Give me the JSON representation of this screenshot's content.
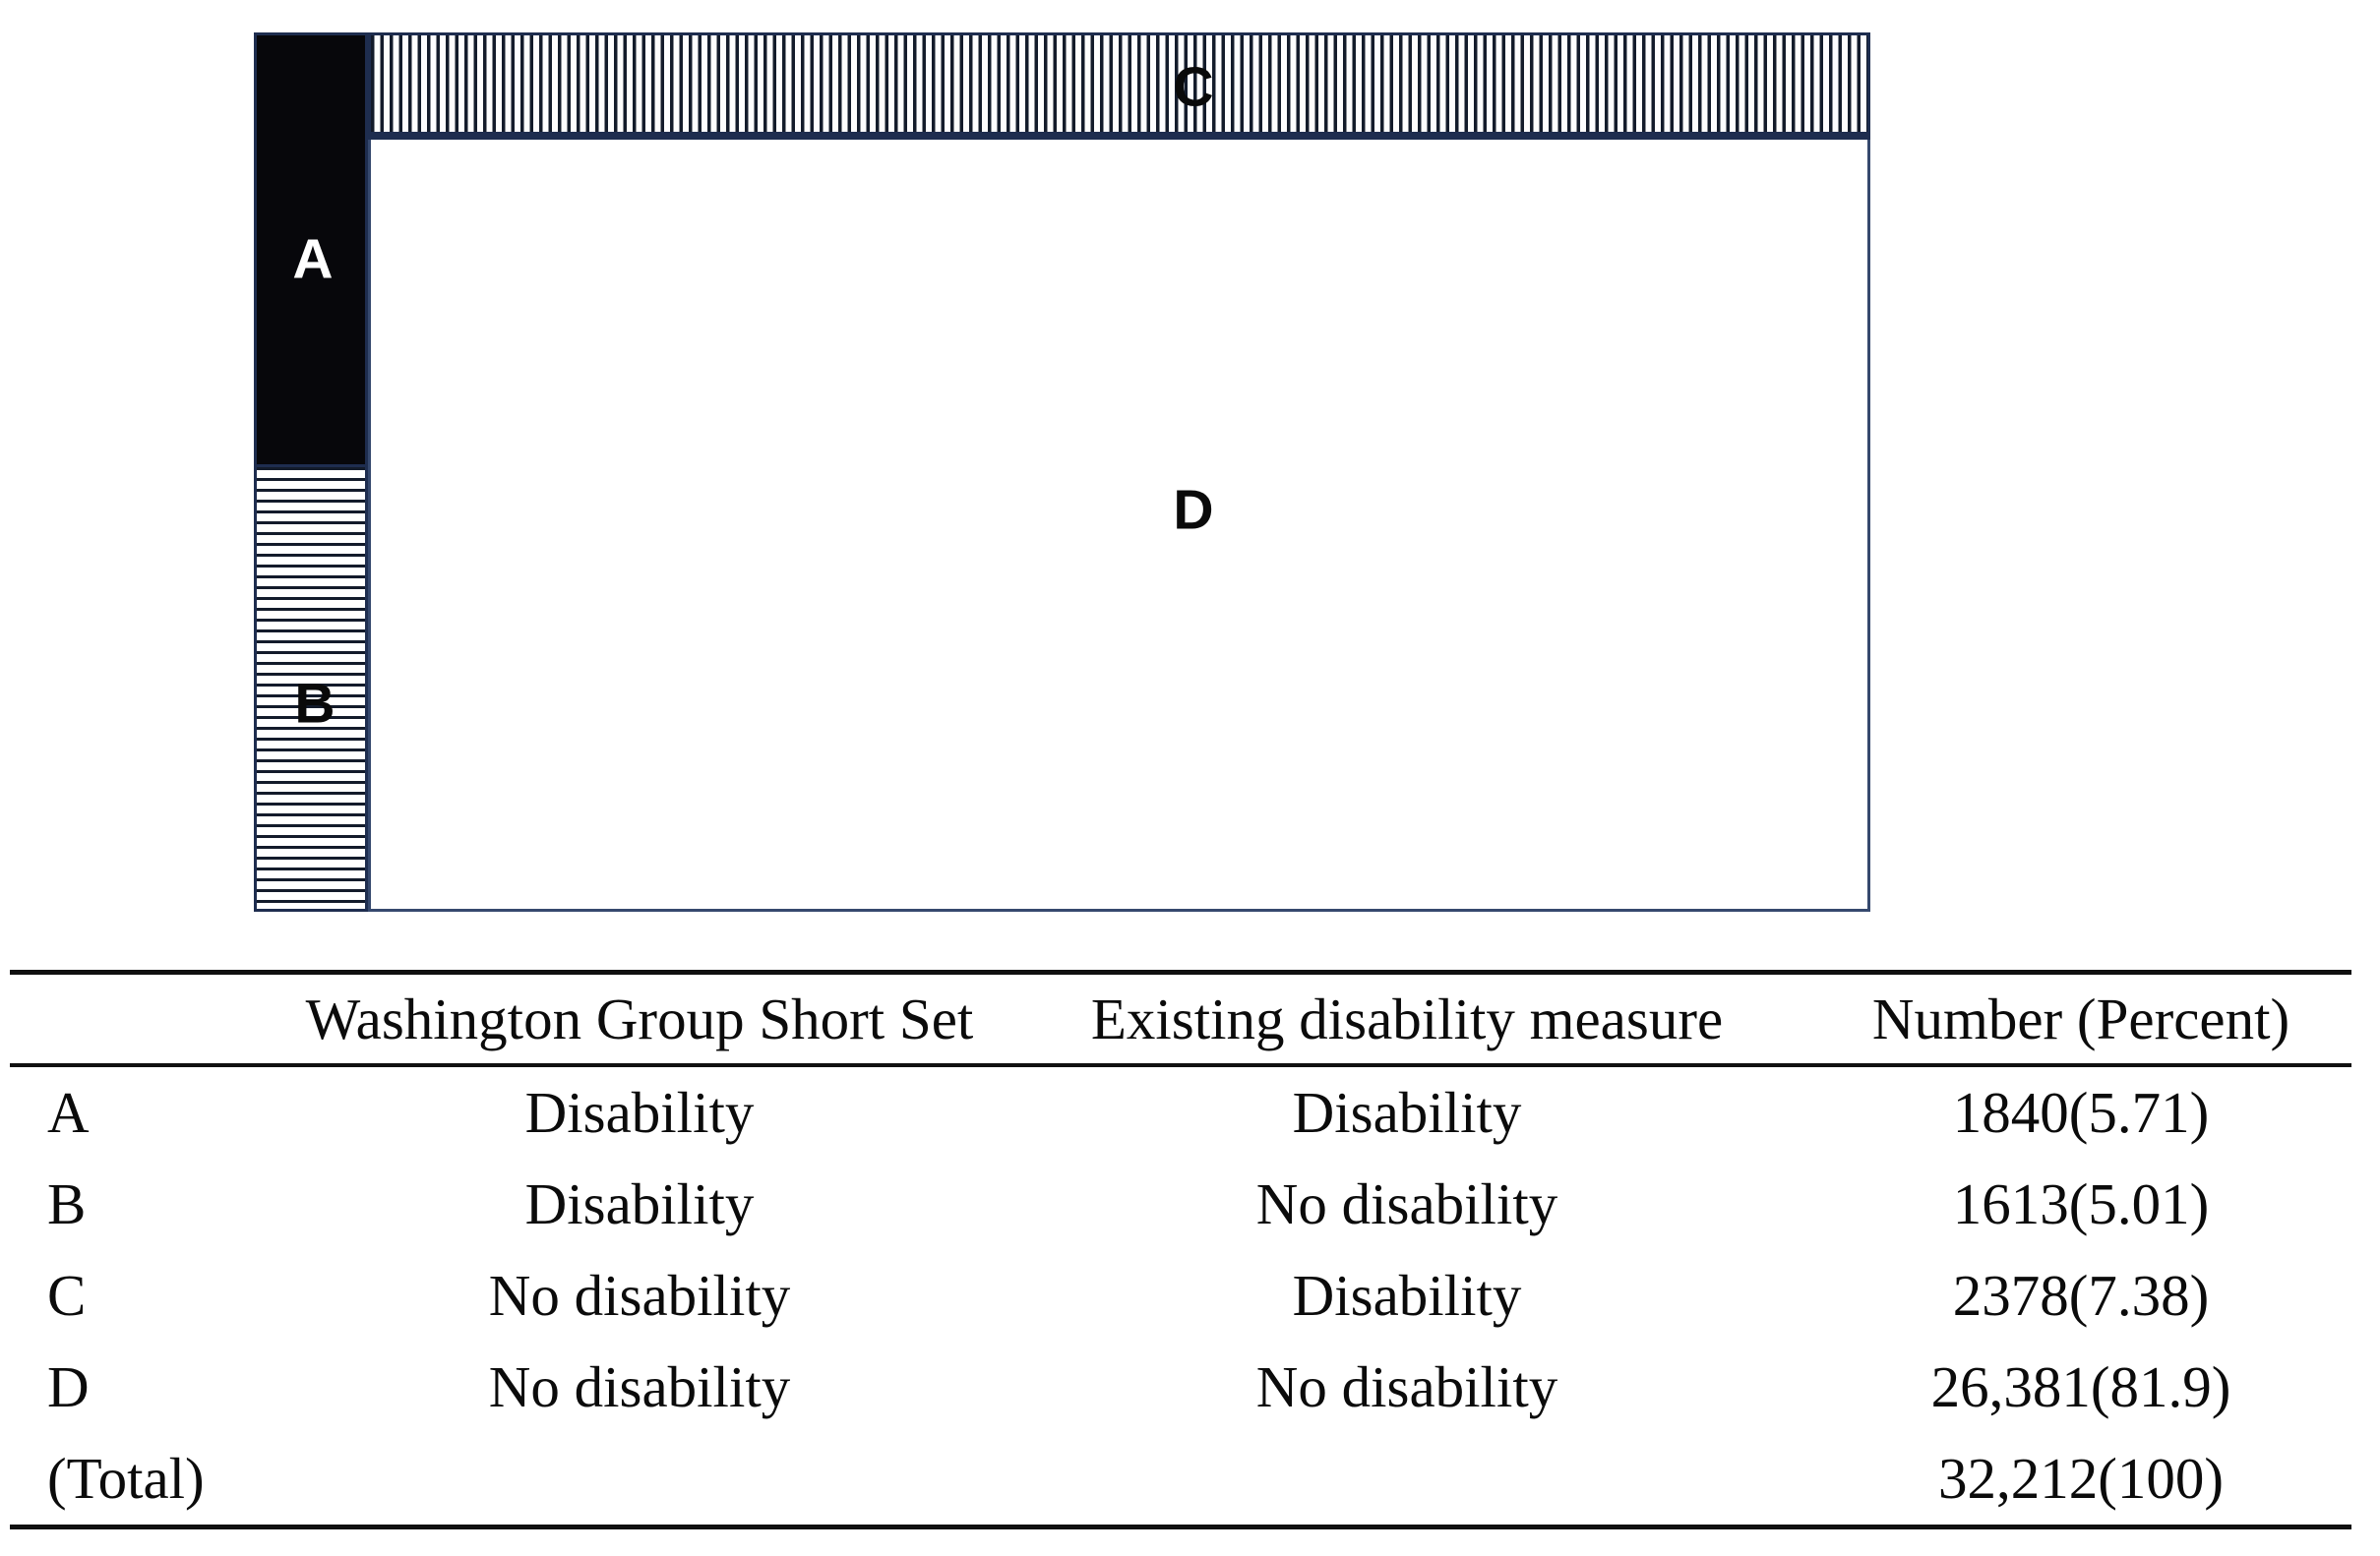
{
  "diagram": {
    "description": "Proportional area diagram of disability classification overlap",
    "regions": [
      {
        "id": "A",
        "label": "A",
        "fill": "solid-black",
        "meaning_row": 0
      },
      {
        "id": "B",
        "label": "B",
        "fill": "horizontal-stripes",
        "meaning_row": 1
      },
      {
        "id": "C",
        "label": "C",
        "fill": "vertical-stripes",
        "meaning_row": 2
      },
      {
        "id": "D",
        "label": "D",
        "fill": "white",
        "meaning_row": 3
      }
    ],
    "colors": {
      "border": "#1e2d4f",
      "stripe": "#131b2b",
      "black_fill": "#07070b",
      "label_on_black": "#ffffff",
      "label_default": "#0a0a0a"
    }
  },
  "table": {
    "columns": [
      "",
      "Washington Group Short Set",
      "Existing disability measure",
      "Number (Percent)"
    ],
    "rows": [
      {
        "label": "A",
        "wgss": "Disability",
        "existing": "Disability",
        "number": "1840(5.71)"
      },
      {
        "label": "B",
        "wgss": "Disability",
        "existing": "No disability",
        "number": "1613(5.01)"
      },
      {
        "label": "C",
        "wgss": "No disability",
        "existing": "Disability",
        "number": "2378(7.38)"
      },
      {
        "label": "D",
        "wgss": "No disability",
        "existing": "No disability",
        "number": "26,381(81.9)"
      },
      {
        "label": "(Total)",
        "wgss": "",
        "existing": "",
        "number": "32,212(100)"
      }
    ]
  }
}
